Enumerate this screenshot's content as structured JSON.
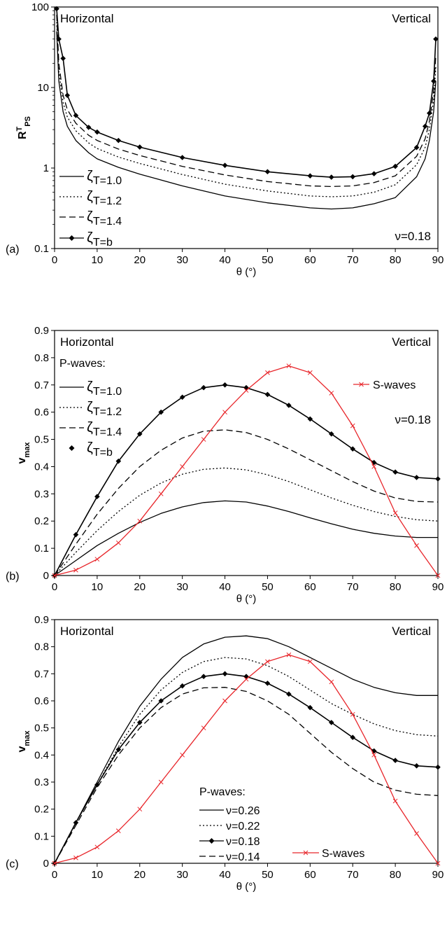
{
  "colors": {
    "black": "#000000",
    "swave": "#e8262b"
  },
  "chart_data": [
    {
      "panel": "(a)",
      "type": "line",
      "y_scale": "log",
      "xlim": [
        0,
        90
      ],
      "ylim": [
        0.1,
        100
      ],
      "x_ticks": [
        "0",
        "10",
        "20",
        "30",
        "40",
        "50",
        "60",
        "70",
        "80",
        "90"
      ],
      "y_ticks": [
        "0.1",
        "1",
        "10",
        "100"
      ],
      "xlabel": "θ (°)",
      "ylabel_main": "R",
      "ylabel_sup": "T",
      "ylabel_sub": "PS",
      "left_note": "Horizontal",
      "right_note": "Vertical",
      "nu_note": "ν=0.18",
      "legend": [
        "ζ",
        "ζ",
        "ζ",
        "ζ"
      ],
      "legend_suffix": [
        "T=1.0",
        "T=1.2",
        "T=1.4",
        "T=b"
      ],
      "series": [
        {
          "name": "ζT=1.0",
          "style": "solid",
          "marker": "none",
          "x": [
            0.5,
            1,
            2,
            3,
            5,
            8,
            10,
            15,
            20,
            30,
            40,
            50,
            60,
            65,
            70,
            75,
            80,
            85,
            87,
            88,
            89,
            89.5
          ],
          "y": [
            50,
            12,
            5,
            3.3,
            2.2,
            1.55,
            1.3,
            1.02,
            0.84,
            0.6,
            0.45,
            0.37,
            0.32,
            0.31,
            0.32,
            0.36,
            0.43,
            0.78,
            1.3,
            2.2,
            5,
            12
          ]
        },
        {
          "name": "ζT=1.2",
          "style": "dotted",
          "marker": "none",
          "x": [
            0.5,
            1,
            2,
            3,
            5,
            8,
            10,
            15,
            20,
            30,
            40,
            50,
            60,
            65,
            70,
            75,
            80,
            85,
            87,
            88,
            89,
            89.5
          ],
          "y": [
            65,
            16,
            6.5,
            4.3,
            2.9,
            2.05,
            1.75,
            1.37,
            1.14,
            0.83,
            0.63,
            0.52,
            0.45,
            0.44,
            0.45,
            0.5,
            0.62,
            1.1,
            1.8,
            3,
            7,
            18
          ]
        },
        {
          "name": "ζT=1.4",
          "style": "dashed",
          "marker": "none",
          "x": [
            0.5,
            1,
            2,
            3,
            5,
            8,
            10,
            15,
            20,
            30,
            40,
            50,
            60,
            65,
            70,
            75,
            80,
            85,
            87,
            88,
            89,
            89.5
          ],
          "y": [
            80,
            20,
            8,
            5.3,
            3.6,
            2.55,
            2.2,
            1.72,
            1.43,
            1.05,
            0.82,
            0.68,
            0.6,
            0.59,
            0.6,
            0.66,
            0.8,
            1.4,
            2.3,
            3.8,
            9,
            25
          ]
        },
        {
          "name": "ζT=b",
          "style": "solid",
          "marker": "diamond",
          "x": [
            0.5,
            1,
            2,
            3,
            5,
            8,
            10,
            15,
            20,
            30,
            40,
            50,
            60,
            65,
            70,
            75,
            80,
            85,
            87,
            88,
            89,
            89.5
          ],
          "y": [
            95,
            40,
            23,
            8,
            4.5,
            3.2,
            2.8,
            2.2,
            1.82,
            1.35,
            1.08,
            0.9,
            0.8,
            0.77,
            0.78,
            0.85,
            1.05,
            1.8,
            3.3,
            4.8,
            12,
            40
          ]
        }
      ]
    },
    {
      "panel": "(b)",
      "type": "line",
      "xlim": [
        0,
        90
      ],
      "ylim": [
        0,
        0.9
      ],
      "x_ticks": [
        "0",
        "10",
        "20",
        "30",
        "40",
        "50",
        "60",
        "70",
        "80",
        "90"
      ],
      "y_ticks": [
        "0",
        "0.1",
        "0.2",
        "0.3",
        "0.4",
        "0.5",
        "0.6",
        "0.7",
        "0.8",
        "0.9"
      ],
      "xlabel": "θ (°)",
      "ylabel_main": "v",
      "ylabel_sub": "max",
      "left_note": "Horizontal",
      "right_note": "Vertical",
      "nu_note": "ν=0.18",
      "legend_title": "P-waves:",
      "legend": [
        "ζ",
        "ζ",
        "ζ",
        "ζ"
      ],
      "legend_suffix": [
        "T=1.0",
        "T=1.2",
        "T=1.4",
        "T=b"
      ],
      "swave_label": "S-waves",
      "series": [
        {
          "name": "ζT=1.0",
          "style": "solid",
          "marker": "none",
          "x": [
            0,
            5,
            10,
            15,
            20,
            25,
            30,
            35,
            40,
            45,
            50,
            55,
            60,
            65,
            70,
            75,
            80,
            85,
            90
          ],
          "y": [
            0,
            0.055,
            0.11,
            0.155,
            0.195,
            0.228,
            0.252,
            0.268,
            0.274,
            0.27,
            0.255,
            0.235,
            0.212,
            0.19,
            0.17,
            0.155,
            0.145,
            0.14,
            0.14
          ]
        },
        {
          "name": "ζT=1.2",
          "style": "dotted",
          "marker": "none",
          "x": [
            0,
            5,
            10,
            15,
            20,
            25,
            30,
            35,
            40,
            45,
            50,
            55,
            60,
            65,
            70,
            75,
            80,
            85,
            90
          ],
          "y": [
            0,
            0.085,
            0.165,
            0.235,
            0.295,
            0.34,
            0.372,
            0.39,
            0.395,
            0.388,
            0.37,
            0.345,
            0.315,
            0.285,
            0.258,
            0.235,
            0.217,
            0.205,
            0.2
          ]
        },
        {
          "name": "ζT=1.4",
          "style": "dashed",
          "marker": "none",
          "x": [
            0,
            5,
            10,
            15,
            20,
            25,
            30,
            35,
            40,
            45,
            50,
            55,
            60,
            65,
            70,
            75,
            80,
            85,
            90
          ],
          "y": [
            0,
            0.115,
            0.225,
            0.32,
            0.4,
            0.46,
            0.505,
            0.53,
            0.535,
            0.525,
            0.5,
            0.465,
            0.425,
            0.385,
            0.345,
            0.31,
            0.285,
            0.272,
            0.27
          ]
        },
        {
          "name": "ζT=b",
          "style": "solid",
          "marker": "diamond",
          "x": [
            0,
            5,
            10,
            15,
            20,
            25,
            30,
            35,
            40,
            45,
            50,
            55,
            60,
            65,
            70,
            75,
            80,
            85,
            90
          ],
          "y": [
            0,
            0.15,
            0.29,
            0.42,
            0.52,
            0.6,
            0.655,
            0.69,
            0.7,
            0.69,
            0.665,
            0.625,
            0.575,
            0.52,
            0.465,
            0.415,
            0.38,
            0.36,
            0.355
          ]
        },
        {
          "name": "S-waves",
          "style": "solid",
          "marker": "x",
          "color": "red",
          "x": [
            0,
            5,
            10,
            15,
            20,
            25,
            30,
            35,
            40,
            45,
            50,
            55,
            60,
            65,
            70,
            75,
            80,
            85,
            90
          ],
          "y": [
            0,
            0.02,
            0.06,
            0.12,
            0.2,
            0.3,
            0.4,
            0.5,
            0.6,
            0.68,
            0.745,
            0.77,
            0.745,
            0.67,
            0.55,
            0.4,
            0.23,
            0.11,
            0
          ]
        }
      ]
    },
    {
      "panel": "(c)",
      "type": "line",
      "xlim": [
        0,
        90
      ],
      "ylim": [
        0,
        0.9
      ],
      "x_ticks": [
        "0",
        "10",
        "20",
        "30",
        "40",
        "50",
        "60",
        "70",
        "80",
        "90"
      ],
      "y_ticks": [
        "0",
        "0.1",
        "0.2",
        "0.3",
        "0.4",
        "0.5",
        "0.6",
        "0.7",
        "0.8",
        "0.9"
      ],
      "xlabel": "θ (°)",
      "ylabel_main": "v",
      "ylabel_sub": "max",
      "left_note": "Horizontal",
      "right_note": "Vertical",
      "legend_title": "P-waves:",
      "legend": [
        "ν=0.26",
        "ν=0.22",
        "ν=0.18",
        "ν=0.14"
      ],
      "swave_label": "S-waves",
      "series": [
        {
          "name": "ν=0.26",
          "style": "solid",
          "marker": "none",
          "x": [
            0,
            5,
            10,
            15,
            20,
            25,
            30,
            35,
            40,
            45,
            50,
            55,
            60,
            65,
            70,
            75,
            80,
            85,
            90
          ],
          "y": [
            0,
            0.15,
            0.3,
            0.45,
            0.58,
            0.68,
            0.76,
            0.81,
            0.835,
            0.84,
            0.83,
            0.8,
            0.76,
            0.72,
            0.68,
            0.65,
            0.63,
            0.62,
            0.62
          ]
        },
        {
          "name": "ν=0.22",
          "style": "dotted",
          "marker": "none",
          "x": [
            0,
            5,
            10,
            15,
            20,
            25,
            30,
            35,
            40,
            45,
            50,
            55,
            60,
            65,
            70,
            75,
            80,
            85,
            90
          ],
          "y": [
            0,
            0.15,
            0.29,
            0.43,
            0.55,
            0.64,
            0.705,
            0.745,
            0.76,
            0.755,
            0.73,
            0.69,
            0.64,
            0.59,
            0.55,
            0.515,
            0.49,
            0.475,
            0.47
          ]
        },
        {
          "name": "ν=0.18",
          "style": "solid",
          "marker": "diamond",
          "x": [
            0,
            5,
            10,
            15,
            20,
            25,
            30,
            35,
            40,
            45,
            50,
            55,
            60,
            65,
            70,
            75,
            80,
            85,
            90
          ],
          "y": [
            0,
            0.15,
            0.29,
            0.42,
            0.52,
            0.6,
            0.655,
            0.69,
            0.7,
            0.69,
            0.665,
            0.625,
            0.575,
            0.52,
            0.465,
            0.415,
            0.38,
            0.36,
            0.355
          ]
        },
        {
          "name": "ν=0.14",
          "style": "dashed",
          "marker": "none",
          "x": [
            0,
            5,
            10,
            15,
            20,
            25,
            30,
            35,
            40,
            45,
            50,
            55,
            60,
            65,
            70,
            75,
            80,
            85,
            90
          ],
          "y": [
            0,
            0.14,
            0.28,
            0.4,
            0.5,
            0.575,
            0.625,
            0.648,
            0.65,
            0.635,
            0.6,
            0.55,
            0.48,
            0.41,
            0.35,
            0.3,
            0.27,
            0.255,
            0.25
          ]
        },
        {
          "name": "S-waves",
          "style": "solid",
          "marker": "x",
          "color": "red",
          "x": [
            0,
            5,
            10,
            15,
            20,
            25,
            30,
            35,
            40,
            45,
            50,
            55,
            60,
            65,
            70,
            75,
            80,
            85,
            90
          ],
          "y": [
            0,
            0.02,
            0.06,
            0.12,
            0.2,
            0.3,
            0.4,
            0.5,
            0.6,
            0.68,
            0.745,
            0.77,
            0.745,
            0.67,
            0.55,
            0.4,
            0.23,
            0.11,
            0
          ]
        }
      ]
    }
  ]
}
